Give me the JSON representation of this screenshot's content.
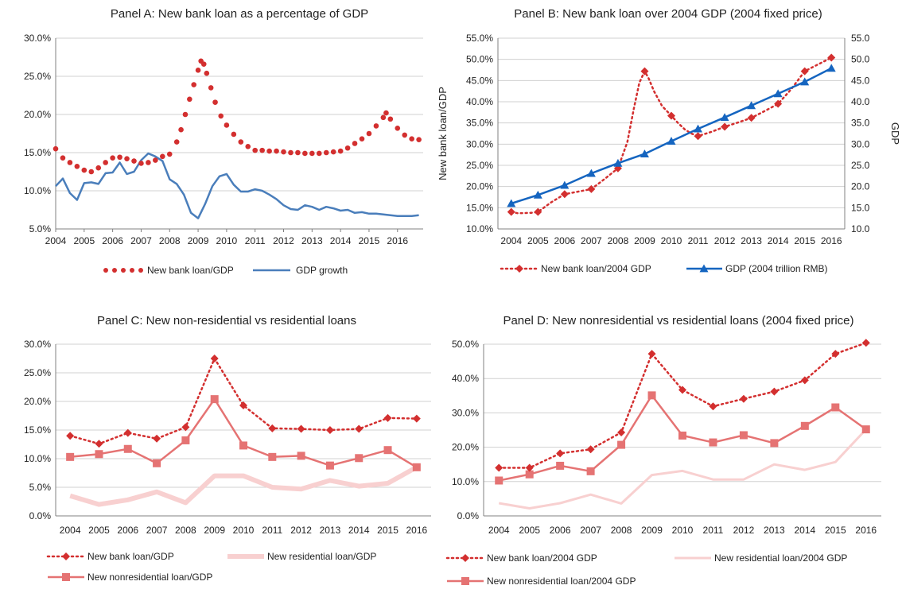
{
  "chart_data": [
    {
      "type": "line",
      "title": "Panel A: New bank loan as a percentage of GDP",
      "x_ticks": [
        "2004",
        "2005",
        "2006",
        "2007",
        "2008",
        "2009",
        "2010",
        "2011",
        "2012",
        "2013",
        "2014",
        "2015",
        "2016"
      ],
      "y_ticks": [
        "5.0%",
        "10.0%",
        "15.0%",
        "20.0%",
        "25.0%",
        "30.0%"
      ],
      "ylim": [
        5,
        30
      ],
      "xlim": [
        2004,
        2016.9
      ],
      "grid": true,
      "legend": "bottom",
      "series": [
        {
          "name": "New bank loan/GDP",
          "color": "#d32f2f",
          "style": "dots",
          "x": [
            2004.0,
            2004.25,
            2004.5,
            2004.75,
            2005.0,
            2005.25,
            2005.5,
            2005.75,
            2006.0,
            2006.25,
            2006.5,
            2006.75,
            2007.0,
            2007.25,
            2007.5,
            2007.75,
            2008.0,
            2008.25,
            2008.4,
            2008.55,
            2008.7,
            2008.85,
            2009.0,
            2009.1,
            2009.2,
            2009.3,
            2009.45,
            2009.6,
            2009.8,
            2010.0,
            2010.25,
            2010.5,
            2010.75,
            2011.0,
            2011.25,
            2011.5,
            2011.75,
            2012.0,
            2012.25,
            2012.5,
            2012.75,
            2013.0,
            2013.25,
            2013.5,
            2013.75,
            2014.0,
            2014.25,
            2014.5,
            2014.75,
            2015.0,
            2015.25,
            2015.5,
            2015.6,
            2015.75,
            2016.0,
            2016.25,
            2016.5,
            2016.75
          ],
          "values": [
            15.5,
            14.3,
            13.7,
            13.2,
            12.7,
            12.5,
            13.0,
            13.7,
            14.3,
            14.4,
            14.2,
            13.9,
            13.6,
            13.7,
            14.0,
            14.5,
            14.8,
            16.4,
            18.0,
            20.0,
            22.0,
            23.9,
            25.8,
            27.0,
            26.6,
            25.4,
            23.5,
            21.6,
            19.8,
            18.6,
            17.4,
            16.4,
            15.8,
            15.3,
            15.3,
            15.2,
            15.2,
            15.1,
            15.0,
            15.0,
            14.9,
            14.9,
            14.9,
            15.0,
            15.1,
            15.2,
            15.6,
            16.2,
            16.8,
            17.5,
            18.5,
            19.6,
            20.2,
            19.4,
            18.2,
            17.3,
            16.8,
            16.7
          ]
        },
        {
          "name": "GDP growth",
          "color": "#4a7ebb",
          "style": "solid",
          "x": [
            2004.0,
            2004.25,
            2004.5,
            2004.75,
            2005.0,
            2005.25,
            2005.5,
            2005.75,
            2006.0,
            2006.25,
            2006.5,
            2006.75,
            2007.0,
            2007.25,
            2007.5,
            2007.75,
            2008.0,
            2008.25,
            2008.5,
            2008.75,
            2009.0,
            2009.25,
            2009.5,
            2009.75,
            2010.0,
            2010.25,
            2010.5,
            2010.75,
            2011.0,
            2011.25,
            2011.5,
            2011.75,
            2012.0,
            2012.25,
            2012.5,
            2012.75,
            2013.0,
            2013.25,
            2013.5,
            2013.75,
            2014.0,
            2014.25,
            2014.5,
            2014.75,
            2015.0,
            2015.25,
            2015.5,
            2015.75,
            2016.0,
            2016.25,
            2016.5,
            2016.75
          ],
          "values": [
            10.6,
            11.6,
            9.7,
            8.8,
            11.0,
            11.1,
            10.9,
            12.3,
            12.4,
            13.7,
            12.2,
            12.5,
            14.0,
            14.9,
            14.5,
            13.9,
            11.5,
            10.9,
            9.5,
            7.1,
            6.4,
            8.3,
            10.6,
            11.9,
            12.2,
            10.8,
            9.9,
            9.9,
            10.2,
            10.0,
            9.5,
            8.9,
            8.1,
            7.6,
            7.5,
            8.1,
            7.9,
            7.5,
            7.9,
            7.7,
            7.4,
            7.5,
            7.1,
            7.2,
            7.0,
            7.0,
            6.9,
            6.8,
            6.7,
            6.7,
            6.7,
            6.8
          ]
        }
      ]
    },
    {
      "type": "line",
      "title": "Panel B: New bank loan over 2004 GDP (2004 fixed price)",
      "categories": [
        "2004",
        "2005",
        "2006",
        "2007",
        "2008",
        "2009",
        "2010",
        "2011",
        "2012",
        "2013",
        "2014",
        "2015",
        "2016"
      ],
      "y_ticks": [
        "10.0%",
        "15.0%",
        "20.0%",
        "25.0%",
        "30.0%",
        "35.0%",
        "40.0%",
        "45.0%",
        "50.0%",
        "55.0%"
      ],
      "y2_ticks": [
        "10.0",
        "15.0",
        "20.0",
        "25.0",
        "30.0",
        "35.0",
        "40.0",
        "45.0",
        "50.0",
        "55.0"
      ],
      "ylabel": "New bank loan/GDP",
      "y2label": "GDP",
      "ylim": [
        10,
        55
      ],
      "y2lim": [
        10,
        55
      ],
      "grid": true,
      "legend": "bottom",
      "series": [
        {
          "name": "New bank loan/2004 GDP",
          "color": "#d32f2f",
          "style": "dotted-diamond",
          "values": [
            14.0,
            14.0,
            18.2,
            19.4,
            24.3,
            47.2,
            36.7,
            31.9,
            34.1,
            36.2,
            39.5,
            47.2,
            50.4
          ],
          "extra_x": [
            2004.25,
            2004.75,
            2005.5,
            2006.5,
            2007.5,
            2008.35,
            2008.6,
            2008.8,
            2009.15,
            2009.35,
            2009.65,
            2010.25,
            2010.5,
            2010.75,
            2011.5,
            2012.5,
            2013.5,
            2014.5
          ],
          "extra_values": [
            13.7,
            13.8,
            16.3,
            18.8,
            21.8,
            30.5,
            38.5,
            44.5,
            45.5,
            42.5,
            39.0,
            35.0,
            33.5,
            32.5,
            32.9,
            35.1,
            37.8,
            43.0
          ]
        },
        {
          "name": "GDP (2004 trillion RMB)",
          "color": "#1565c0",
          "style": "solid-triangle",
          "values": [
            16.0,
            18.0,
            20.3,
            23.1,
            25.5,
            27.7,
            30.7,
            33.6,
            36.3,
            39.1,
            41.9,
            44.7,
            47.9
          ]
        }
      ]
    },
    {
      "type": "line",
      "title": "Panel C: New non-residential vs residential loans",
      "categories": [
        "2004",
        "2005",
        "2006",
        "2007",
        "2008",
        "2009",
        "2010",
        "2011",
        "2012",
        "2013",
        "2014",
        "2015",
        "2016"
      ],
      "y_ticks": [
        "0.0%",
        "5.0%",
        "10.0%",
        "15.0%",
        "20.0%",
        "25.0%",
        "30.0%"
      ],
      "ylim": [
        0,
        30
      ],
      "grid": true,
      "legend": "bottom",
      "series": [
        {
          "name": "New bank loan/GDP",
          "color": "#d32f2f",
          "style": "dotted-diamond",
          "values": [
            14.0,
            12.6,
            14.5,
            13.5,
            15.5,
            27.5,
            19.3,
            15.3,
            15.2,
            15.0,
            15.2,
            17.1,
            17.0
          ]
        },
        {
          "name": "New residential loan/GDP",
          "color": "#f8d0d0",
          "style": "thick",
          "values": [
            3.5,
            2.0,
            2.8,
            4.2,
            2.3,
            7.0,
            7.0,
            5.0,
            4.7,
            6.2,
            5.2,
            5.7,
            8.5
          ]
        },
        {
          "name": "New nonresidential loan/GDP",
          "color": "#e57373",
          "style": "solid-square",
          "values": [
            10.3,
            10.8,
            11.7,
            9.2,
            13.2,
            20.4,
            12.3,
            10.3,
            10.5,
            8.8,
            10.1,
            11.5,
            8.5
          ]
        }
      ]
    },
    {
      "type": "line",
      "title": "Panel D: New nonresidential vs residential loans (2004 fixed price)",
      "categories": [
        "2004",
        "2005",
        "2006",
        "2007",
        "2008",
        "2009",
        "2010",
        "2011",
        "2012",
        "2013",
        "2014",
        "2015",
        "2016"
      ],
      "y_ticks": [
        "0.0%",
        "10.0%",
        "20.0%",
        "30.0%",
        "40.0%",
        "50.0%"
      ],
      "ylim": [
        0,
        50
      ],
      "grid": true,
      "legend": "bottom",
      "series": [
        {
          "name": "New bank loan/2004 GDP",
          "color": "#d32f2f",
          "style": "dotted-diamond",
          "values": [
            14.0,
            14.0,
            18.2,
            19.4,
            24.3,
            47.2,
            36.7,
            31.9,
            34.1,
            36.2,
            39.5,
            47.2,
            50.4
          ]
        },
        {
          "name": "New residential loan/2004 GDP",
          "color": "#f8d0d0",
          "style": "solid",
          "values": [
            3.7,
            2.2,
            3.7,
            6.2,
            3.6,
            11.9,
            13.1,
            10.6,
            10.6,
            15.0,
            13.4,
            15.7,
            25.2
          ]
        },
        {
          "name": "New nonresidential loan/2004 GDP",
          "color": "#e57373",
          "style": "solid-square",
          "values": [
            10.3,
            12.1,
            14.6,
            13.0,
            20.7,
            35.1,
            23.4,
            21.4,
            23.5,
            21.2,
            26.2,
            31.6,
            25.2
          ]
        }
      ]
    }
  ]
}
